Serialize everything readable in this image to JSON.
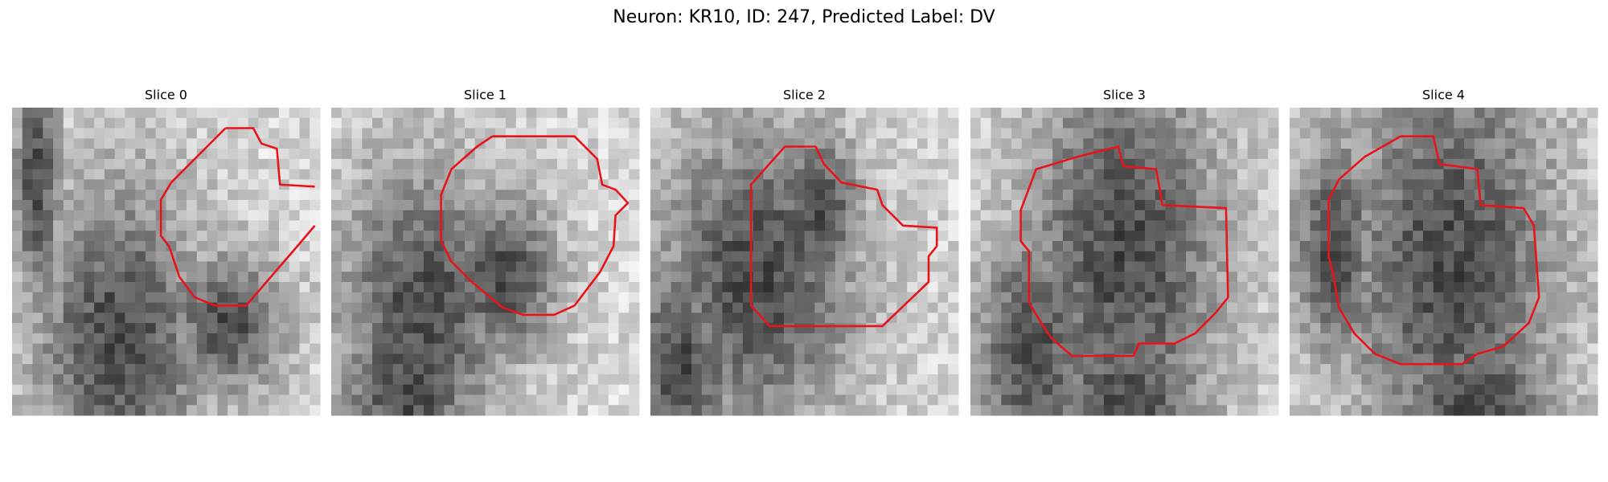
{
  "title": "Neuron: KR10, ID: 247, Predicted Label: DV",
  "panels": [
    {
      "title": "Slice 0"
    },
    {
      "title": "Slice 1"
    },
    {
      "title": "Slice 2"
    },
    {
      "title": "Slice 3"
    },
    {
      "title": "Slice 4"
    }
  ]
}
